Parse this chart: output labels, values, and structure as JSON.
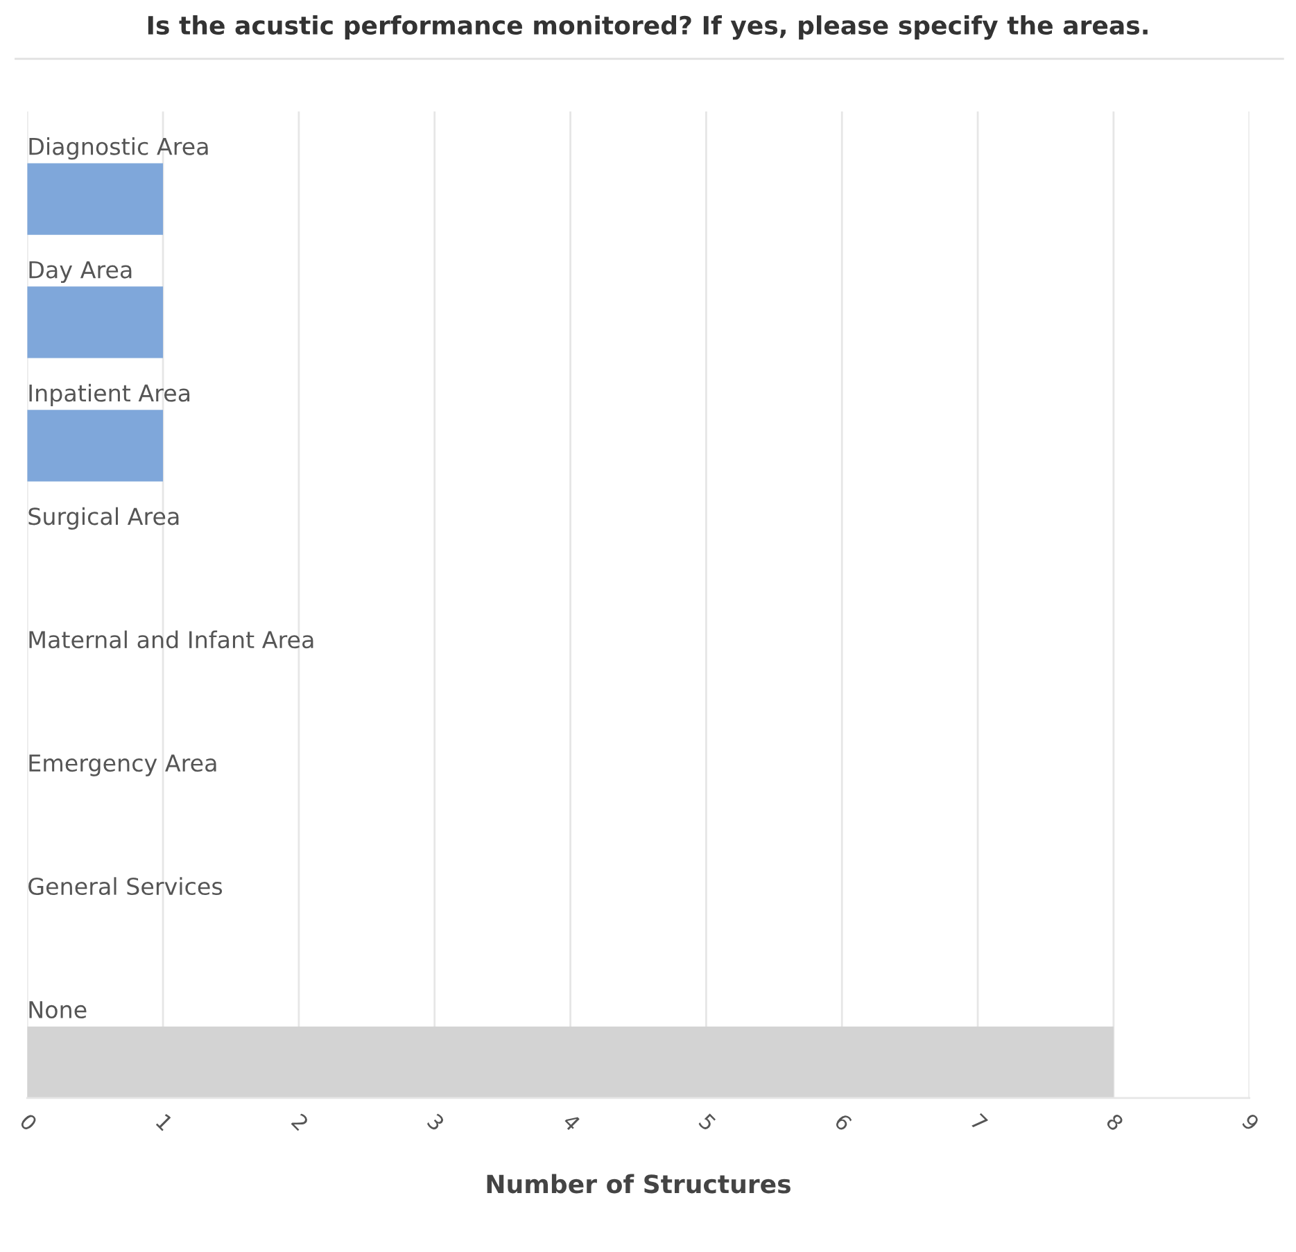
{
  "chart_data": {
    "type": "bar",
    "orientation": "horizontal",
    "title": "Is the acustic performance monitored? If yes, please specify the areas.",
    "xlabel": "Number of Structures",
    "categories": [
      "Diagnostic Area",
      "Day Area",
      "Inpatient Area",
      "Surgical Area",
      "Maternal and Infant Area",
      "Emergency Area",
      "General Services",
      "None"
    ],
    "values": [
      1,
      1,
      1,
      0,
      0,
      0,
      0,
      8
    ],
    "colors": [
      "#7fa7da",
      "#7fa7da",
      "#7fa7da",
      "#7fa7da",
      "#7fa7da",
      "#7fa7da",
      "#7fa7da",
      "#d3d3d3"
    ],
    "xlim": [
      0,
      9
    ],
    "xticks": [
      0,
      1,
      2,
      3,
      4,
      5,
      6,
      7,
      8,
      9
    ],
    "grid": "x"
  }
}
